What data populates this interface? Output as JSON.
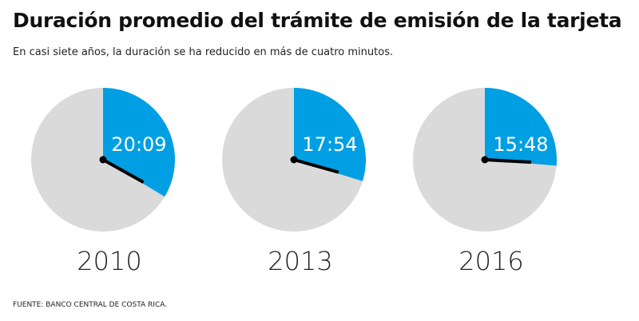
{
  "chart_data": {
    "type": "pie",
    "title": "Duración promedio del trámite de emisión de la tarjeta",
    "subtitle": "En casi siete años, la duración se ha reducido en más de cuatro minutos.",
    "source": "FUENTE: BANCO CENTRAL DE COSTA RICA.",
    "unit": "minutes out of 60",
    "items": [
      {
        "year": "2010",
        "label": "20:09",
        "minutes": 20.15
      },
      {
        "year": "2013",
        "label": "17:54",
        "minutes": 17.9
      },
      {
        "year": "2016",
        "label": "15:48",
        "minutes": 15.8
      }
    ],
    "colors": {
      "wedge": "#009fe3",
      "rest": "#dadada",
      "hand": "#000000"
    }
  }
}
